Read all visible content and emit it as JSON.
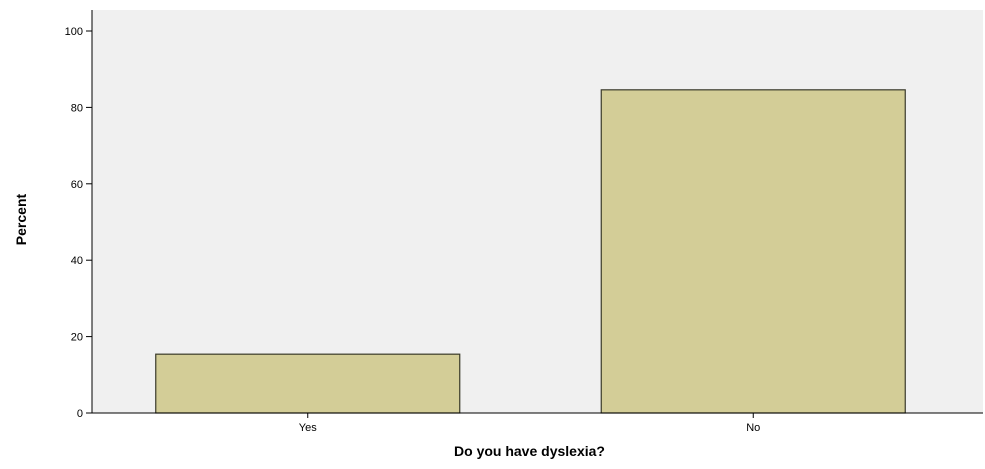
{
  "chart_data": {
    "type": "bar",
    "categories": [
      "Yes",
      "No"
    ],
    "values": [
      15.4,
      84.6
    ],
    "xlabel": "Do you have dyslexia?",
    "ylabel": "Percent",
    "ylim": [
      0,
      100
    ],
    "yticks": [
      0,
      20,
      40,
      60,
      80,
      100
    ],
    "grid": false,
    "colors": {
      "bar_fill": "#d3cd97",
      "bar_stroke": "#3a3a2a",
      "plot_background": "#f0f0f0",
      "axis": "#000000"
    }
  }
}
